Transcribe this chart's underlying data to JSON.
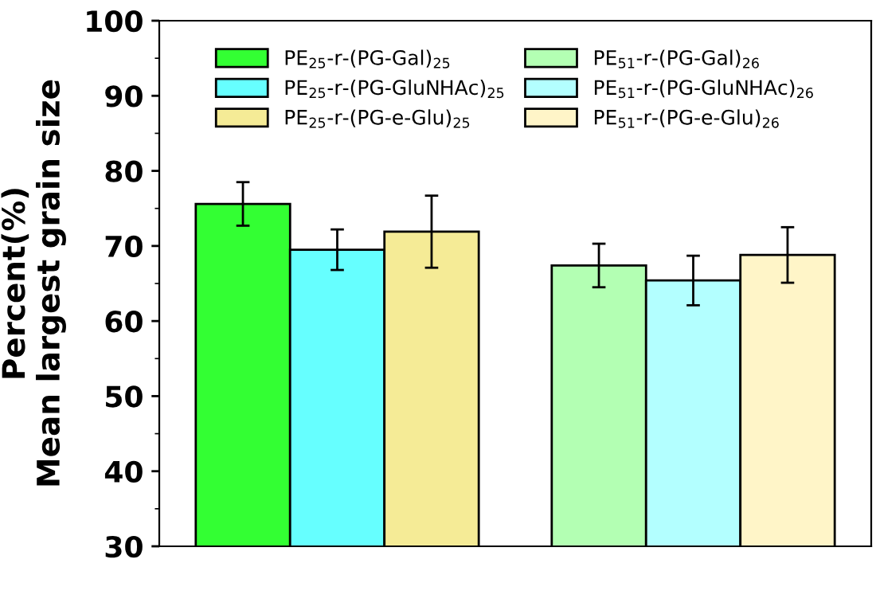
{
  "chart_data": {
    "type": "bar",
    "ylabel": "Percent(%)\nMean largest grain size",
    "categories": [
      null,
      null
    ],
    "series": [
      {
        "name": "PE$_{25}$-r-(PG-Gal)$_{25}$",
        "color": "#33ff33",
        "values": [
          75.6,
          null
        ],
        "errors": [
          2.9,
          null
        ]
      },
      {
        "name": "PE$_{25}$-r-(PG-GluNHAc)$_{25}$",
        "color": "#66ffff",
        "values": [
          69.5,
          null
        ],
        "errors": [
          2.7,
          null
        ]
      },
      {
        "name": "PE$_{25}$-r-(PG-e-Glu)$_{25}$",
        "color": "#f5eb96",
        "values": [
          71.9,
          null
        ],
        "errors": [
          4.8,
          null
        ]
      },
      {
        "name": "PE$_{51}$-r-(PG-Gal)$_{26}$",
        "color": "#b3ffb3",
        "values": [
          null,
          67.4
        ],
        "errors": [
          null,
          2.9
        ]
      },
      {
        "name": "PE$_{51}$-r-(PG-GluNHAc)$_{26}$",
        "color": "#b3ffff",
        "values": [
          null,
          65.4
        ],
        "errors": [
          null,
          3.3
        ]
      },
      {
        "name": "PE$_{51}$-r-(PG-e-Glu)$_{26}$",
        "color": "#fff5c8",
        "values": [
          null,
          68.8
        ],
        "errors": [
          null,
          3.7
        ]
      }
    ],
    "ylim": [
      30,
      100
    ],
    "yticks": [
      30,
      40,
      50,
      60,
      70,
      80,
      90,
      100
    ],
    "grid": false,
    "legend": "top"
  }
}
